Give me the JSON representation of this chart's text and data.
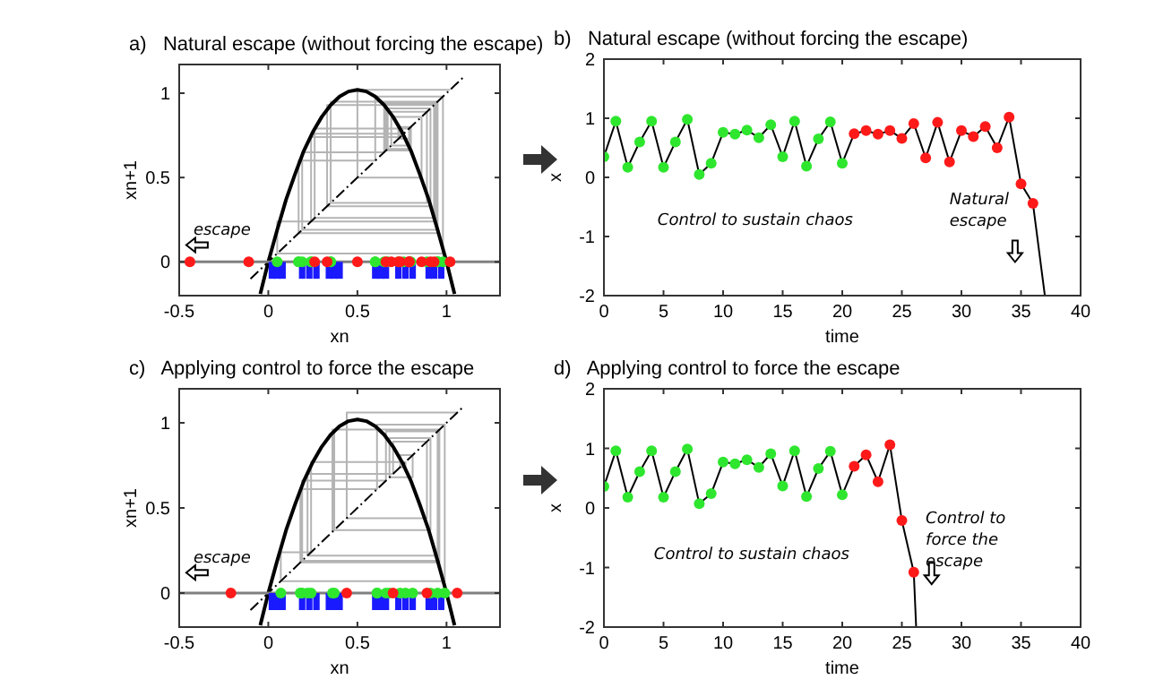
{
  "chart_data": [
    {
      "type": "line",
      "title": "a)   Natural escape (without forcing the escape)",
      "xlabel": "xn",
      "ylabel": "xn+1",
      "xlim": [
        -0.5,
        1.3
      ],
      "ylim": [
        -0.2,
        1.17
      ],
      "xticks": [
        -0.5,
        0,
        0.5,
        1
      ],
      "yticks": [
        0,
        0.5,
        1
      ],
      "annotations": [
        "escape"
      ],
      "ref_lines": [
        {
          "axis": "y",
          "value": 0,
          "color": "#808080"
        }
      ],
      "series": [
        {
          "type": "line",
          "color": "#b4b4b4",
          "x": [
            0.35,
            0.35,
            0.95,
            0.95,
            0.17,
            0.17,
            0.6,
            0.6,
            0.95,
            0.95,
            0.17,
            0.17,
            0.6,
            0.6,
            0.98,
            0.98,
            0.05,
            0.05,
            0.24,
            0.24,
            0.76,
            0.76,
            0.73,
            0.73,
            0.8,
            0.8,
            0.67,
            0.67,
            0.89,
            0.89,
            0.35,
            0.35,
            0.95,
            0.95,
            0.19,
            0.19,
            0.65,
            0.65,
            0.94,
            0.94,
            0.24,
            0.24,
            0.74,
            0.74,
            0.79,
            0.79,
            0.73,
            0.73,
            0.79,
            0.79,
            0.66,
            0.66,
            0.91,
            0.91,
            0.33,
            0.33,
            0.93,
            0.93,
            0.26,
            0.26,
            0.79,
            0.79,
            0.69,
            0.69,
            0.86,
            0.86,
            0.5,
            0.5,
            1.02
          ],
          "values": [
            0.35,
            0.95,
            0.95,
            0.17,
            0.17,
            0.6,
            0.6,
            0.95,
            0.95,
            0.17,
            0.17,
            0.6,
            0.6,
            0.98,
            0.98,
            0.05,
            0.05,
            0.24,
            0.24,
            0.76,
            0.76,
            0.73,
            0.73,
            0.8,
            0.8,
            0.67,
            0.67,
            0.89,
            0.89,
            0.35,
            0.35,
            0.95,
            0.95,
            0.19,
            0.19,
            0.65,
            0.65,
            0.94,
            0.94,
            0.24,
            0.24,
            0.74,
            0.74,
            0.79,
            0.79,
            0.73,
            0.73,
            0.79,
            0.79,
            0.66,
            0.66,
            0.91,
            0.91,
            0.33,
            0.33,
            0.93,
            0.93,
            0.26,
            0.26,
            0.79,
            0.79,
            0.69,
            0.69,
            0.86,
            0.86,
            0.5,
            0.5,
            1.02,
            1.02
          ]
        },
        {
          "type": "line",
          "color": "#000000",
          "x": [
            -0.045,
            0,
            0.05,
            0.1,
            0.15,
            0.2,
            0.25,
            0.3,
            0.35,
            0.4,
            0.45,
            0.5,
            0.55,
            0.6,
            0.65,
            0.7,
            0.75,
            0.8,
            0.85,
            0.9,
            0.95,
            1,
            1.045
          ],
          "values": [
            -0.19,
            0,
            0.19,
            0.37,
            0.52,
            0.66,
            0.77,
            0.86,
            0.93,
            0.98,
            1.01,
            1.02,
            1.01,
            0.98,
            0.93,
            0.86,
            0.77,
            0.66,
            0.52,
            0.37,
            0.19,
            0,
            -0.19
          ]
        },
        {
          "type": "line",
          "color": "#000000",
          "line_style": "dashed",
          "x": [
            -0.1,
            1.1
          ],
          "values": [
            -0.1,
            1.1
          ]
        },
        {
          "type": "bar",
          "color": "#1a1aff",
          "x": [
            0.02,
            0.05,
            0.08,
            0.19,
            0.23,
            0.27,
            0.34,
            0.37,
            0.4,
            0.6,
            0.63,
            0.66,
            0.73,
            0.77,
            0.81,
            0.9,
            0.93,
            0.97
          ],
          "values": [
            -0.1,
            -0.1,
            -0.1,
            -0.1,
            -0.1,
            -0.1,
            -0.1,
            -0.1,
            -0.1,
            -0.1,
            -0.1,
            -0.1,
            -0.1,
            -0.1,
            -0.1,
            -0.1,
            -0.1,
            -0.1
          ]
        },
        {
          "type": "scatter",
          "color": "#2ee62e",
          "marker": "circle",
          "x": [
            0.35,
            0.95,
            0.17,
            0.6,
            0.95,
            0.17,
            0.6,
            0.98,
            0.05,
            0.24,
            0.76,
            0.73,
            0.8,
            0.67,
            0.89,
            0.35,
            0.95,
            0.19,
            0.65,
            0.24
          ],
          "values": [
            0,
            0,
            0,
            0,
            0,
            0,
            0,
            0,
            0,
            0,
            0,
            0,
            0,
            0,
            0,
            0,
            0,
            0,
            0,
            0
          ]
        },
        {
          "type": "scatter",
          "color": "#ff1a1a",
          "marker": "circle",
          "x": [
            0.74,
            0.79,
            0.73,
            0.79,
            0.66,
            0.91,
            0.33,
            0.93,
            0.26,
            0.79,
            0.69,
            0.86,
            0.5,
            1.02,
            -0.11,
            -0.44
          ],
          "values": [
            0,
            0,
            0,
            0,
            0,
            0,
            0,
            0,
            0,
            0,
            0,
            0,
            0,
            0,
            0,
            0
          ]
        }
      ]
    },
    {
      "type": "line",
      "title": "b)   Natural escape (without forcing the escape)",
      "xlabel": "time",
      "ylabel": "x",
      "xlim": [
        0,
        40
      ],
      "ylim": [
        -2,
        2
      ],
      "xticks": [
        0,
        5,
        10,
        15,
        20,
        25,
        30,
        35,
        40
      ],
      "yticks": [
        -2,
        -1,
        0,
        1,
        2
      ],
      "annotations": [
        "Control to sustain chaos",
        "Natural escape"
      ],
      "series": [
        {
          "type": "line",
          "color": "#000000",
          "x": [
            0,
            1,
            2,
            3,
            4,
            5,
            6,
            7,
            8,
            9,
            10,
            11,
            12,
            13,
            14,
            15,
            16,
            17,
            18,
            19,
            20,
            21,
            22,
            23,
            24,
            25,
            26,
            27,
            28,
            29,
            30,
            31,
            32,
            33,
            34,
            35,
            36,
            37
          ],
          "values": [
            0.35,
            0.95,
            0.17,
            0.6,
            0.95,
            0.17,
            0.6,
            0.98,
            0.05,
            0.24,
            0.76,
            0.73,
            0.8,
            0.67,
            0.89,
            0.35,
            0.95,
            0.19,
            0.65,
            0.94,
            0.24,
            0.74,
            0.79,
            0.73,
            0.79,
            0.66,
            0.91,
            0.33,
            0.93,
            0.26,
            0.79,
            0.69,
            0.86,
            0.5,
            1.02,
            -0.11,
            -0.44,
            -2
          ]
        },
        {
          "type": "scatter",
          "color": "#2ee62e",
          "marker": "circle",
          "x": [
            0,
            1,
            2,
            3,
            4,
            5,
            6,
            7,
            8,
            9,
            10,
            11,
            12,
            13,
            14,
            15,
            16,
            17,
            18,
            19,
            20
          ],
          "values": [
            0.35,
            0.95,
            0.17,
            0.6,
            0.95,
            0.17,
            0.6,
            0.98,
            0.05,
            0.24,
            0.76,
            0.73,
            0.8,
            0.67,
            0.89,
            0.35,
            0.95,
            0.19,
            0.65,
            0.94,
            0.24
          ]
        },
        {
          "type": "scatter",
          "color": "#ff1a1a",
          "marker": "circle",
          "x": [
            21,
            22,
            23,
            24,
            25,
            26,
            27,
            28,
            29,
            30,
            31,
            32,
            33,
            34,
            35,
            36
          ],
          "values": [
            0.74,
            0.79,
            0.73,
            0.79,
            0.66,
            0.91,
            0.33,
            0.93,
            0.26,
            0.79,
            0.69,
            0.86,
            0.5,
            1.02,
            -0.11,
            -0.44
          ]
        }
      ]
    },
    {
      "type": "line",
      "title": "c)   Applying control to force the escape",
      "xlabel": "xn",
      "ylabel": "xn+1",
      "xlim": [
        -0.5,
        1.3
      ],
      "ylim": [
        -0.2,
        1.2
      ],
      "xticks": [
        -0.5,
        0,
        0.5,
        1
      ],
      "yticks": [
        0,
        0.5,
        1
      ],
      "annotations": [
        "escape"
      ],
      "ref_lines": [
        {
          "axis": "y",
          "value": 0,
          "color": "#808080"
        }
      ],
      "series": [
        {
          "type": "line",
          "color": "#b4b4b4",
          "x": [
            0.36,
            0.36,
            0.96,
            0.96,
            0.18,
            0.18,
            0.61,
            0.61,
            0.96,
            0.96,
            0.18,
            0.18,
            0.61,
            0.61,
            0.99,
            0.99,
            0.07,
            0.07,
            0.24,
            0.24,
            0.77,
            0.77,
            0.74,
            0.74,
            0.81,
            0.81,
            0.68,
            0.68,
            0.91,
            0.91,
            0.37,
            0.37,
            0.96,
            0.96,
            0.19,
            0.19,
            0.66,
            0.66,
            0.95,
            0.95,
            0.22,
            0.22,
            0.7,
            0.7,
            0.89,
            0.89,
            0.44,
            0.44,
            1.06
          ],
          "values": [
            0.36,
            0.96,
            0.96,
            0.18,
            0.18,
            0.61,
            0.61,
            0.96,
            0.96,
            0.18,
            0.18,
            0.61,
            0.61,
            0.99,
            0.99,
            0.07,
            0.07,
            0.24,
            0.24,
            0.77,
            0.77,
            0.74,
            0.74,
            0.81,
            0.81,
            0.68,
            0.68,
            0.91,
            0.91,
            0.37,
            0.37,
            0.96,
            0.96,
            0.19,
            0.19,
            0.66,
            0.66,
            0.95,
            0.95,
            0.22,
            0.22,
            0.7,
            0.7,
            0.89,
            0.89,
            0.44,
            0.44,
            1.06,
            1.06
          ]
        },
        {
          "type": "line",
          "color": "#000000",
          "x": [
            -0.045,
            0,
            0.05,
            0.1,
            0.15,
            0.2,
            0.25,
            0.3,
            0.35,
            0.4,
            0.45,
            0.5,
            0.55,
            0.6,
            0.65,
            0.7,
            0.75,
            0.8,
            0.85,
            0.9,
            0.95,
            1,
            1.045
          ],
          "values": [
            -0.19,
            0,
            0.19,
            0.37,
            0.52,
            0.66,
            0.77,
            0.86,
            0.93,
            0.98,
            1.01,
            1.02,
            1.01,
            0.98,
            0.93,
            0.86,
            0.77,
            0.66,
            0.52,
            0.37,
            0.19,
            0,
            -0.19
          ]
        },
        {
          "type": "line",
          "color": "#000000",
          "line_style": "dashed",
          "x": [
            -0.1,
            1.1
          ],
          "values": [
            -0.1,
            1.1
          ]
        },
        {
          "type": "bar",
          "color": "#1a1aff",
          "x": [
            0.02,
            0.05,
            0.08,
            0.19,
            0.23,
            0.27,
            0.34,
            0.37,
            0.4,
            0.6,
            0.63,
            0.66,
            0.73,
            0.77,
            0.81,
            0.9,
            0.93,
            0.97
          ],
          "values": [
            -0.1,
            -0.1,
            -0.1,
            -0.1,
            -0.1,
            -0.1,
            -0.1,
            -0.1,
            -0.1,
            -0.1,
            -0.1,
            -0.1,
            -0.1,
            -0.1,
            -0.1,
            -0.1,
            -0.1,
            -0.1
          ]
        },
        {
          "type": "scatter",
          "color": "#2ee62e",
          "marker": "circle",
          "x": [
            0.36,
            0.18,
            0.61,
            0.18,
            0.61,
            0.99,
            0.07,
            0.24,
            0.77,
            0.74,
            0.81,
            0.68,
            0.91,
            0.37,
            0.19,
            0.66,
            0.95,
            0.22
          ],
          "values": [
            0,
            0,
            0,
            0,
            0,
            0,
            0,
            0,
            0,
            0,
            0,
            0,
            0,
            0,
            0,
            0,
            0,
            0
          ]
        },
        {
          "type": "scatter",
          "color": "#ff1a1a",
          "marker": "circle",
          "x": [
            0.7,
            0.89,
            0.44,
            1.06,
            -0.21
          ],
          "values": [
            0,
            0,
            0,
            0,
            0
          ]
        }
      ]
    },
    {
      "type": "line",
      "title": "d)   Applying control to force the escape",
      "xlabel": "time",
      "ylabel": "x",
      "xlim": [
        0,
        40
      ],
      "ylim": [
        -2,
        2
      ],
      "xticks": [
        0,
        5,
        10,
        15,
        20,
        25,
        30,
        35,
        40
      ],
      "yticks": [
        -2,
        -1,
        0,
        1,
        2
      ],
      "annotations": [
        "Control to sustain chaos",
        "Control to force the escape"
      ],
      "series": [
        {
          "type": "line",
          "color": "#000000",
          "x": [
            0,
            1,
            2,
            3,
            4,
            5,
            6,
            7,
            8,
            9,
            10,
            11,
            12,
            13,
            14,
            15,
            16,
            17,
            18,
            19,
            20,
            21,
            22,
            23,
            24,
            25,
            26,
            26.2
          ],
          "values": [
            0.36,
            0.96,
            0.18,
            0.61,
            0.96,
            0.18,
            0.61,
            0.99,
            0.07,
            0.24,
            0.77,
            0.74,
            0.81,
            0.68,
            0.91,
            0.37,
            0.96,
            0.19,
            0.66,
            0.95,
            0.22,
            0.7,
            0.89,
            0.44,
            1.06,
            -0.21,
            -1.08,
            -2
          ]
        },
        {
          "type": "scatter",
          "color": "#2ee62e",
          "marker": "circle",
          "x": [
            0,
            1,
            2,
            3,
            4,
            5,
            6,
            7,
            8,
            9,
            10,
            11,
            12,
            13,
            14,
            15,
            16,
            17,
            18,
            19,
            20
          ],
          "values": [
            0.36,
            0.96,
            0.18,
            0.61,
            0.96,
            0.18,
            0.61,
            0.99,
            0.07,
            0.24,
            0.77,
            0.74,
            0.81,
            0.68,
            0.91,
            0.37,
            0.96,
            0.19,
            0.66,
            0.95,
            0.22
          ]
        },
        {
          "type": "scatter",
          "color": "#ff1a1a",
          "marker": "circle",
          "x": [
            21,
            22,
            23,
            24,
            25,
            26
          ],
          "values": [
            0.7,
            0.89,
            0.44,
            1.06,
            -0.21,
            -1.08
          ]
        }
      ]
    }
  ]
}
